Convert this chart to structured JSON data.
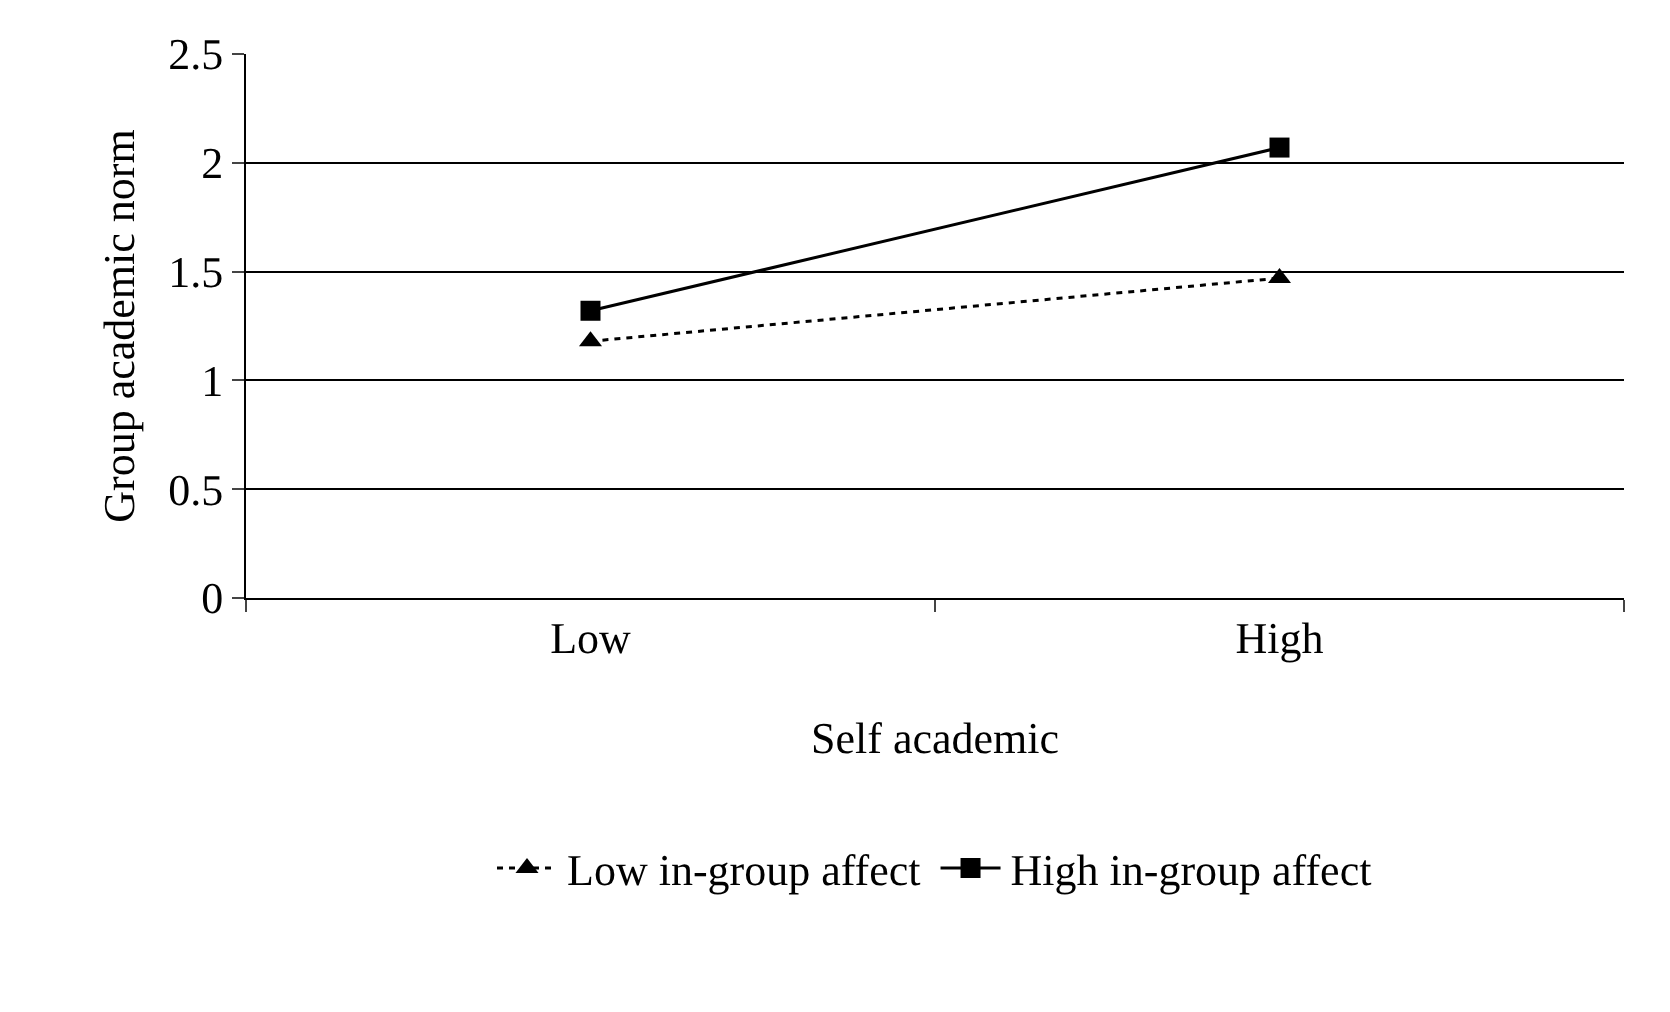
{
  "chart_data": {
    "type": "line",
    "xlabel": "Self academic",
    "ylabel": "Group academic norm",
    "categories": [
      "Low",
      "High"
    ],
    "series": [
      {
        "name": "Low in-group affect",
        "color": "#000000",
        "values": [
          1.18,
          1.47
        ],
        "marker": "triangle",
        "line_style": "dotted"
      },
      {
        "name": "High in-group affect",
        "color": "#000000",
        "values": [
          1.32,
          2.07
        ],
        "marker": "square",
        "line_style": "solid"
      }
    ],
    "ylim": [
      0,
      2.5
    ],
    "yticks": [
      0,
      0.5,
      1,
      1.5,
      2,
      2.5
    ],
    "grid": "y",
    "legend": "bottom"
  }
}
